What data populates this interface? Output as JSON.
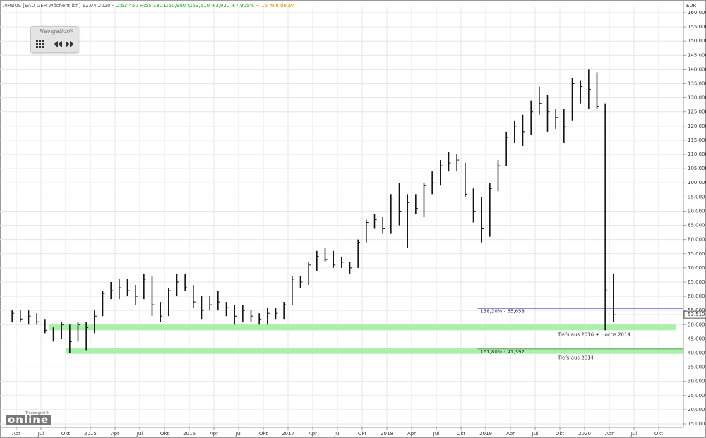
{
  "chart_data": {
    "type": "ohlc",
    "title": "AIRBUS [EAD GER Wöchentlich] 12.04.2020 -",
    "subtitle": "O:53,450 H:55,130 L:50,900 C:53,510 +3,920 +7,905%",
    "note": "+ 15 min delay",
    "y_label": "EUR",
    "color": "#111111",
    "x": [
      "2014-03",
      "2014-04",
      "2014-05",
      "2014-06",
      "2014-07",
      "2014-08",
      "2014-09",
      "2014-10",
      "2014-11",
      "2014-12",
      "2015-01",
      "2015-02",
      "2015-03",
      "2015-04",
      "2015-05",
      "2015-06",
      "2015-07",
      "2015-08",
      "2015-09",
      "2015-10",
      "2015-11",
      "2015-12",
      "2016-01",
      "2016-02",
      "2016-03",
      "2016-04",
      "2016-05",
      "2016-06",
      "2016-07",
      "2016-08",
      "2016-09",
      "2016-10",
      "2016-11",
      "2016-12",
      "2017-01",
      "2017-02",
      "2017-03",
      "2017-04",
      "2017-05",
      "2017-06",
      "2017-07",
      "2017-08",
      "2017-09",
      "2017-10",
      "2017-11",
      "2017-12",
      "2018-01",
      "2018-02",
      "2018-03",
      "2018-04",
      "2018-05",
      "2018-06",
      "2018-07",
      "2018-08",
      "2018-09",
      "2018-10",
      "2018-11",
      "2018-12",
      "2019-01",
      "2019-02",
      "2019-03",
      "2019-04",
      "2019-05",
      "2019-06",
      "2019-07",
      "2019-08",
      "2019-09",
      "2019-10",
      "2019-11",
      "2019-12",
      "2020-01",
      "2020-02",
      "2020-03",
      "2020-04"
    ],
    "high": [
      55,
      55,
      55,
      54,
      52,
      49,
      51,
      50,
      51,
      51,
      55,
      62,
      65,
      66,
      66,
      64,
      68,
      67,
      58,
      63,
      68,
      68,
      64,
      60,
      60,
      62,
      58,
      57,
      57,
      55,
      54,
      56,
      56,
      58,
      67,
      67,
      72,
      76,
      77,
      76,
      74,
      72,
      80,
      87,
      89,
      88,
      96,
      100,
      96,
      96,
      100,
      104,
      108,
      111,
      110,
      107,
      98,
      95,
      100,
      108,
      118,
      122,
      124,
      129,
      134,
      131,
      126,
      126,
      137,
      136,
      140,
      139,
      128,
      68
    ],
    "low": [
      51,
      51,
      50,
      50,
      47,
      44,
      45,
      40,
      44,
      41,
      47,
      53,
      59,
      59,
      60,
      57,
      59,
      53,
      51,
      53,
      60,
      62,
      56,
      52,
      55,
      55,
      53,
      50,
      51,
      51,
      50,
      50,
      52,
      52,
      57,
      63,
      64,
      69,
      72,
      70,
      70,
      68,
      70,
      79,
      84,
      82,
      82,
      85,
      77,
      89,
      88,
      96,
      99,
      104,
      104,
      95,
      86,
      79,
      81,
      97,
      106,
      114,
      113,
      117,
      124,
      118,
      119,
      114,
      122,
      128,
      126,
      126,
      48,
      51
    ],
    "close": [
      54,
      52,
      53,
      51,
      48,
      45,
      50,
      44,
      50,
      49,
      53,
      61,
      62,
      63,
      62,
      60,
      66,
      57,
      53,
      62,
      65,
      63,
      58,
      55,
      57,
      58,
      56,
      53,
      55,
      53,
      52,
      54,
      54,
      57,
      66,
      65,
      71,
      74,
      73,
      71,
      72,
      70,
      79,
      86,
      87,
      84,
      94,
      90,
      93,
      91,
      99,
      100,
      106,
      107,
      108,
      96,
      90,
      84,
      98,
      106,
      116,
      120,
      118,
      125,
      128,
      125,
      123,
      120,
      135,
      134,
      133,
      127,
      62,
      53.51
    ],
    "last": {
      "value": 53.51,
      "label": "53.510"
    },
    "xticks": [
      {
        "value": "2014-04",
        "label": "Apr"
      },
      {
        "value": "2014-07",
        "label": "Jul"
      },
      {
        "value": "2014-10",
        "label": "Okt"
      },
      {
        "value": "2015-01",
        "label": "2015"
      },
      {
        "value": "2015-04",
        "label": "Apr"
      },
      {
        "value": "2015-07",
        "label": "Jul"
      },
      {
        "value": "2015-10",
        "label": "Okt"
      },
      {
        "value": "2016-01",
        "label": "2016"
      },
      {
        "value": "2016-04",
        "label": "Apr"
      },
      {
        "value": "2016-07",
        "label": "Jul"
      },
      {
        "value": "2016-10",
        "label": "Okt"
      },
      {
        "value": "2017-01",
        "label": "2017"
      },
      {
        "value": "2017-04",
        "label": "Apr"
      },
      {
        "value": "2017-07",
        "label": "Jul"
      },
      {
        "value": "2017-10",
        "label": "Okt"
      },
      {
        "value": "2018-01",
        "label": "2018"
      },
      {
        "value": "2018-04",
        "label": "Apr"
      },
      {
        "value": "2018-07",
        "label": "Jul"
      },
      {
        "value": "2018-10",
        "label": "Okt"
      },
      {
        "value": "2019-01",
        "label": "2019"
      },
      {
        "value": "2019-04",
        "label": "Apr"
      },
      {
        "value": "2019-07",
        "label": "Jul"
      },
      {
        "value": "2019-10",
        "label": "Okt"
      },
      {
        "value": "2020-01",
        "label": "2020"
      },
      {
        "value": "2020-04",
        "label": "Apr"
      },
      {
        "value": "2020-07",
        "label": "Jul"
      },
      {
        "value": "2020-10",
        "label": "Okt"
      }
    ],
    "ylim": [
      15,
      160
    ],
    "yticks": [
      {
        "value": 15,
        "label": "15.000"
      },
      {
        "value": 20,
        "label": "20.000"
      },
      {
        "value": 25,
        "label": "25.000"
      },
      {
        "value": 30,
        "label": "30.000"
      },
      {
        "value": 35,
        "label": "35.000"
      },
      {
        "value": 40,
        "label": "40.000"
      },
      {
        "value": 45,
        "label": "45.000"
      },
      {
        "value": 50,
        "label": "50.000"
      },
      {
        "value": 55,
        "label": "55.000"
      },
      {
        "value": 60,
        "label": "60.000"
      },
      {
        "value": 65,
        "label": "65.000"
      },
      {
        "value": 70,
        "label": "70.000"
      },
      {
        "value": 75,
        "label": "75.000"
      },
      {
        "value": 80,
        "label": "80.000"
      },
      {
        "value": 85,
        "label": "85.000"
      },
      {
        "value": 90,
        "label": "90.000"
      },
      {
        "value": 95,
        "label": "95.000"
      },
      {
        "value": 100,
        "label": "100.000"
      },
      {
        "value": 105,
        "label": "105.000"
      },
      {
        "value": 110,
        "label": "110.000"
      },
      {
        "value": 115,
        "label": "115.000"
      },
      {
        "value": 120,
        "label": "120.000"
      },
      {
        "value": 125,
        "label": "125.000"
      },
      {
        "value": 130,
        "label": "130.000"
      },
      {
        "value": 135,
        "label": "135.000"
      },
      {
        "value": 140,
        "label": "140.000"
      },
      {
        "value": 145,
        "label": "145.000"
      },
      {
        "value": 150,
        "label": "150.000"
      },
      {
        "value": 155,
        "label": "155.000"
      },
      {
        "value": 160,
        "label": "160.000"
      }
    ],
    "grid": true,
    "zones": [
      {
        "from": 48,
        "to": 50,
        "start": "2014-08",
        "color": "#aaf0aa",
        "label": "Tiefs aus 2016 + Hochs 2014"
      },
      {
        "from": 39.7,
        "to": 41.6,
        "start": "2014-10",
        "color": "#aaf0aa",
        "label": "Tiefs aus 2014"
      }
    ],
    "levels": [
      {
        "value": 55.658,
        "start": "2018-12",
        "label": "138,20% - 55,658",
        "color": "#6666cc"
      },
      {
        "value": 41.392,
        "start": "2018-12",
        "label": "161,80% - 41,392",
        "color": "#448844"
      }
    ]
  },
  "navigation": {
    "title": "Navigation",
    "close": "×"
  },
  "logo": {
    "small": "Tradesignal®",
    "big": "online"
  }
}
